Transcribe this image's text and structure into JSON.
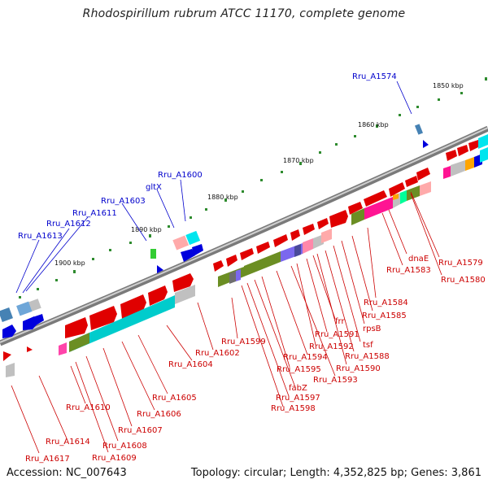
{
  "title": "Rhodospirillum rubrum ATCC 11170, complete genome",
  "footer": {
    "accession": "Accession: NC_007643",
    "summary": "Topology: circular; Length: 4,352,825 bp; Genes: 3,861"
  },
  "ticks": [
    "1850 kbp",
    "1860 kbp",
    "1870 kbp",
    "1880 kbp",
    "1890 kbp",
    "1900 kbp"
  ],
  "blue_labels": [
    "Rru_A1574",
    "Rru_A1600",
    "gltX",
    "Rru_A1603",
    "Rru_A1611",
    "Rru_A1612",
    "Rru_A1613"
  ],
  "red_labels": [
    "Rru_A1579",
    "Rru_A1580",
    "dnaE",
    "Rru_A1583",
    "Rru_A1584",
    "Rru_A1585",
    "rpsB",
    "tsf",
    "Rru_A1588",
    "Rru_A1590",
    "frr",
    "Rru_A1591",
    "Rru_A1592",
    "Rru_A1593",
    "Rru_A1594",
    "Rru_A1595",
    "fabZ",
    "Rru_A1597",
    "Rru_A1598",
    "Rru_A1599",
    "Rru_A1602",
    "Rru_A1604",
    "Rru_A1605",
    "Rru_A1606",
    "Rru_A1607",
    "Rru_A1608",
    "Rru_A1609",
    "Rru_A1610",
    "Rru_A1614",
    "Rru_A1617"
  ],
  "colors": {
    "backbone": "#8c8c8c",
    "forward_gene": "#ee0000",
    "reverse_gene": "#0000ee",
    "label_blue": "#0000cc",
    "label_red": "#cc0000",
    "cog_cyan": "#00cccc",
    "cog_olive": "#6b8e23",
    "cog_purple": "#7b68ee",
    "cog_pink": "#ff69b4"
  }
}
